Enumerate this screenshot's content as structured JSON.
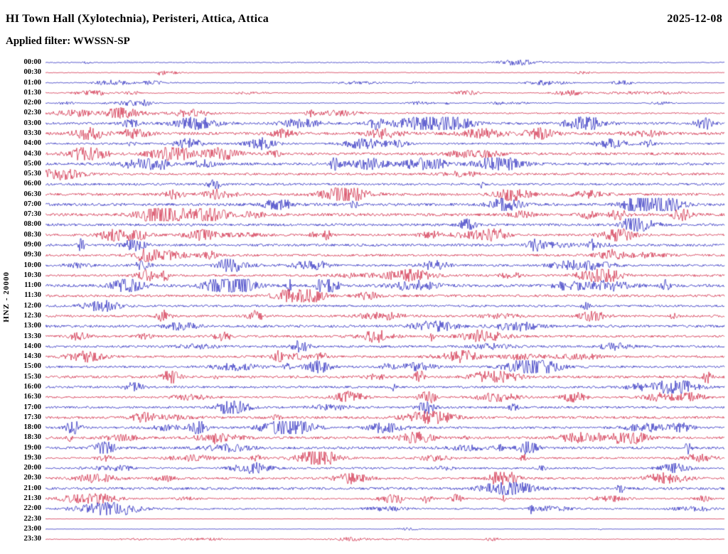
{
  "header": {
    "title": "HI Town Hall (Xylotechnia), Peristeri, Attica, Attica",
    "date": "2025-12-08",
    "filter_label": "Applied filter: WWSSN-SP"
  },
  "axis": {
    "ylabel": "HNZ - 20000"
  },
  "trace_colors": {
    "blue": "#1414b8",
    "red": "#cc1433"
  },
  "chart_data": {
    "type": "line",
    "title": "HI Town Hall (Xylotechnia), Peristeri, Attica, Attica",
    "subtitle": "Applied filter: WWSSN-SP",
    "date": "2025-12-08",
    "ylabel": "HNZ - 20000",
    "x_unit": "time of day, one helicorder line per 30 minutes, alternating blue/red traces",
    "rows": [
      {
        "time": "00:00",
        "color": "blue",
        "amplitude": 0.3
      },
      {
        "time": "00:30",
        "color": "red",
        "amplitude": 0.25
      },
      {
        "time": "01:00",
        "color": "blue",
        "amplitude": 0.3
      },
      {
        "time": "01:30",
        "color": "red",
        "amplitude": 0.3
      },
      {
        "time": "02:00",
        "color": "blue",
        "amplitude": 0.25
      },
      {
        "time": "02:30",
        "color": "red",
        "amplitude": 0.45
      },
      {
        "time": "03:00",
        "color": "blue",
        "amplitude": 0.75
      },
      {
        "time": "03:30",
        "color": "red",
        "amplitude": 0.9
      },
      {
        "time": "04:00",
        "color": "blue",
        "amplitude": 0.6
      },
      {
        "time": "04:30",
        "color": "red",
        "amplitude": 0.8
      },
      {
        "time": "05:00",
        "color": "blue",
        "amplitude": 0.8
      },
      {
        "time": "05:30",
        "color": "red",
        "amplitude": 0.7
      },
      {
        "time": "06:00",
        "color": "blue",
        "amplitude": 0.7
      },
      {
        "time": "06:30",
        "color": "red",
        "amplitude": 0.8
      },
      {
        "time": "07:00",
        "color": "blue",
        "amplitude": 0.9
      },
      {
        "time": "07:30",
        "color": "red",
        "amplitude": 0.9
      },
      {
        "time": "08:00",
        "color": "blue",
        "amplitude": 0.8
      },
      {
        "time": "08:30",
        "color": "red",
        "amplitude": 0.7
      },
      {
        "time": "09:00",
        "color": "blue",
        "amplitude": 0.8
      },
      {
        "time": "09:30",
        "color": "red",
        "amplitude": 0.7
      },
      {
        "time": "10:00",
        "color": "blue",
        "amplitude": 0.7
      },
      {
        "time": "10:30",
        "color": "red",
        "amplitude": 0.7
      },
      {
        "time": "11:00",
        "color": "blue",
        "amplitude": 0.9
      },
      {
        "time": "11:30",
        "color": "red",
        "amplitude": 0.8
      },
      {
        "time": "12:00",
        "color": "blue",
        "amplitude": 0.7
      },
      {
        "time": "12:30",
        "color": "red",
        "amplitude": 0.7
      },
      {
        "time": "13:00",
        "color": "blue",
        "amplitude": 0.8
      },
      {
        "time": "13:30",
        "color": "red",
        "amplitude": 0.7
      },
      {
        "time": "14:00",
        "color": "blue",
        "amplitude": 0.7
      },
      {
        "time": "14:30",
        "color": "red",
        "amplitude": 0.7
      },
      {
        "time": "15:00",
        "color": "blue",
        "amplitude": 0.7
      },
      {
        "time": "15:30",
        "color": "red",
        "amplitude": 0.8
      },
      {
        "time": "16:00",
        "color": "blue",
        "amplitude": 0.7
      },
      {
        "time": "16:30",
        "color": "red",
        "amplitude": 0.6
      },
      {
        "time": "17:00",
        "color": "blue",
        "amplitude": 0.7
      },
      {
        "time": "17:30",
        "color": "red",
        "amplitude": 0.8
      },
      {
        "time": "18:00",
        "color": "blue",
        "amplitude": 0.7
      },
      {
        "time": "18:30",
        "color": "red",
        "amplitude": 0.8
      },
      {
        "time": "19:00",
        "color": "blue",
        "amplitude": 0.8
      },
      {
        "time": "19:30",
        "color": "red",
        "amplitude": 0.6
      },
      {
        "time": "20:00",
        "color": "blue",
        "amplitude": 0.6
      },
      {
        "time": "20:30",
        "color": "red",
        "amplitude": 0.7
      },
      {
        "time": "21:00",
        "color": "blue",
        "amplitude": 0.8
      },
      {
        "time": "21:30",
        "color": "red",
        "amplitude": 0.5
      },
      {
        "time": "22:00",
        "color": "blue",
        "amplitude": 0.5
      },
      {
        "time": "22:30",
        "color": "red",
        "amplitude": 0.1
      },
      {
        "time": "23:00",
        "color": "blue",
        "amplitude": 0.12
      },
      {
        "time": "23:30",
        "color": "red",
        "amplitude": 0.2
      }
    ]
  }
}
